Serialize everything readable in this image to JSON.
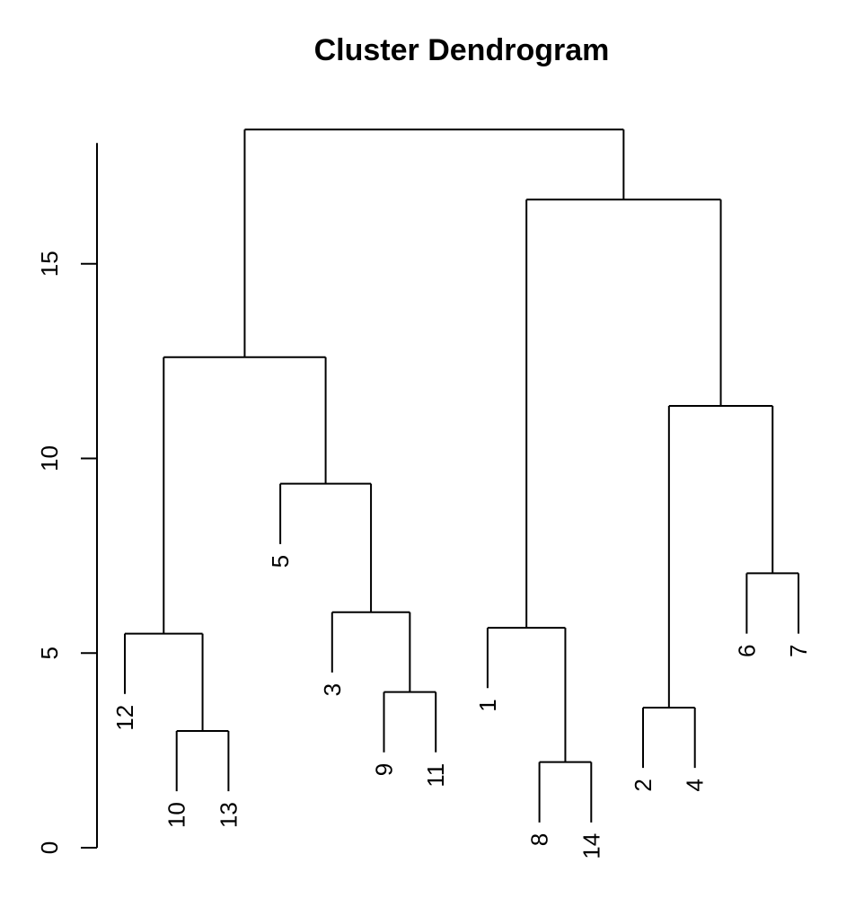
{
  "chart_data": {
    "type": "dendrogram",
    "title": "Cluster Dendrogram",
    "xlabel": "",
    "ylabel": "",
    "ylim": [
      0,
      19
    ],
    "y_ticks": [
      "0",
      "5",
      "10",
      "15"
    ],
    "leaf_order": [
      "12",
      "10",
      "13",
      "5",
      "3",
      "9",
      "11",
      "1",
      "8",
      "14",
      "2",
      "4",
      "6",
      "7"
    ],
    "merges": [
      {
        "left": "10",
        "right": "13",
        "height": 3.0
      },
      {
        "left": "12",
        "right": "10+13",
        "height": 5.5
      },
      {
        "left": "9",
        "right": "11",
        "height": 4.0
      },
      {
        "left": "3",
        "right": "9+11",
        "height": 6.05
      },
      {
        "left": "5",
        "right": "3+9+11",
        "height": 9.35
      },
      {
        "left": "12+10+13",
        "right": "5+3+9+11",
        "height": 12.6
      },
      {
        "left": "8",
        "right": "14",
        "height": 2.2
      },
      {
        "left": "1",
        "right": "8+14",
        "height": 5.65
      },
      {
        "left": "2",
        "right": "4",
        "height": 3.6
      },
      {
        "left": "6",
        "right": "7",
        "height": 7.05
      },
      {
        "left": "2+4",
        "right": "6+7",
        "height": 11.35
      },
      {
        "left": "1+8+14",
        "right": "2+4+6+7",
        "height": 16.65
      },
      {
        "left": "12+10+13+5+3+9+11",
        "right": "1+8+14+2+4+6+7",
        "height": 18.45
      }
    ],
    "grid": false,
    "legend": "none"
  }
}
